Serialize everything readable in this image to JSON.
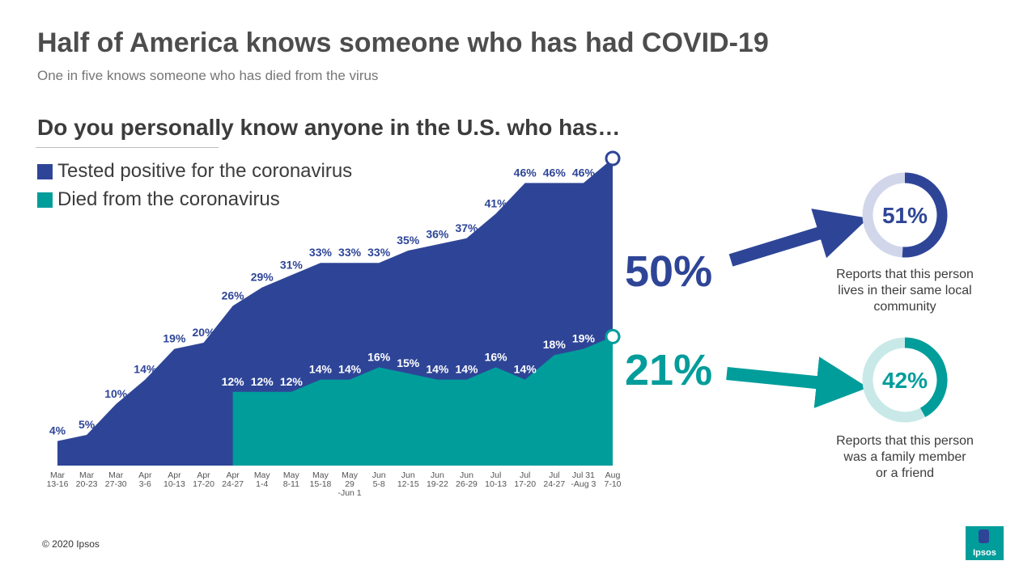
{
  "header": {
    "title": "Half of America knows someone who has had COVID-19",
    "subtitle": "One in five knows someone who has died from the virus",
    "question": "Do you personally know anyone in the U.S. who has…"
  },
  "legend": [
    {
      "label": "Tested positive for the coronavirus",
      "color": "#2e4597"
    },
    {
      "label": "Died from the coronavirus",
      "color": "#009d9b"
    }
  ],
  "chart_data": {
    "type": "area",
    "title": "Do you personally know anyone in the U.S. who has…",
    "categories": [
      [
        "Mar",
        "13-16"
      ],
      [
        "Mar",
        "20-23"
      ],
      [
        "Mar",
        "27-30"
      ],
      [
        "Apr",
        "3-6"
      ],
      [
        "Apr",
        "10-13"
      ],
      [
        "Apr",
        "17-20"
      ],
      [
        "Apr",
        "24-27"
      ],
      [
        "May",
        "1-4"
      ],
      [
        "May",
        "8-11"
      ],
      [
        "May",
        "15-18"
      ],
      [
        "May",
        "29",
        "-Jun 1"
      ],
      [
        "Jun",
        "5-8"
      ],
      [
        "Jun",
        "12-15"
      ],
      [
        "Jun",
        "19-22"
      ],
      [
        "Jun",
        "26-29"
      ],
      [
        "Jul",
        "10-13"
      ],
      [
        "Jul",
        "17-20"
      ],
      [
        "Jul",
        "24-27"
      ],
      [
        "Jul 31",
        "-Aug 3"
      ],
      [
        "Aug",
        "7-10"
      ]
    ],
    "series": [
      {
        "name": "Tested positive for the coronavirus",
        "color": "#2e4597",
        "values": [
          4,
          5,
          10,
          14,
          19,
          20,
          26,
          29,
          31,
          33,
          33,
          33,
          35,
          36,
          37,
          41,
          46,
          46,
          46,
          50
        ],
        "labels": [
          "4%",
          "5%",
          "10%",
          "14%",
          "19%",
          "20%",
          "26%",
          "29%",
          "31%",
          "33%",
          "33%",
          "33%",
          "35%",
          "36%",
          "37%",
          "41%",
          "46%",
          "46%",
          "46%",
          ""
        ]
      },
      {
        "name": "Died from the coronavirus",
        "color": "#009d9b",
        "values": [
          null,
          null,
          null,
          null,
          null,
          null,
          12,
          12,
          12,
          14,
          14,
          16,
          15,
          14,
          14,
          16,
          14,
          18,
          19,
          21
        ],
        "labels": [
          "",
          "",
          "",
          "",
          "",
          "",
          "12%",
          "12%",
          "12%",
          "14%",
          "14%",
          "16%",
          "15%",
          "14%",
          "14%",
          "16%",
          "14%",
          "18%",
          "19%",
          ""
        ]
      }
    ],
    "ylim": [
      0,
      55
    ],
    "grid": false
  },
  "callouts": {
    "positive_value": "50%",
    "died_value": "21%",
    "local": {
      "percent": 51,
      "label": "51%",
      "text": [
        "Reports that this person",
        "lives in their same local",
        "community"
      ]
    },
    "family": {
      "percent": 42,
      "label": "42%",
      "text": [
        "Reports that this person",
        "was a family member",
        "or a friend"
      ]
    }
  },
  "footer": {
    "copyright": "© 2020 Ipsos",
    "logo_text": "Ipsos"
  }
}
